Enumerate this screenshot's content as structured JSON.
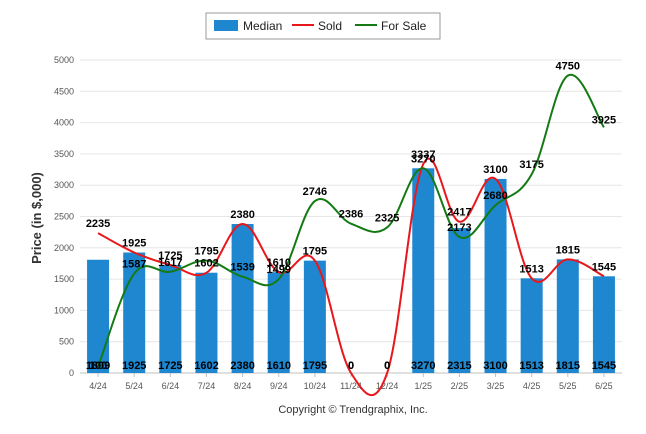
{
  "chart_data": {
    "type": "bar",
    "ylabel": "Price (in $,000)",
    "ylim": [
      0,
      5000
    ],
    "yticks": [
      0,
      500,
      1000,
      1500,
      2000,
      2500,
      3000,
      3500,
      4000,
      4500,
      5000
    ],
    "categories": [
      "4/24",
      "5/24",
      "6/24",
      "7/24",
      "8/24",
      "9/24",
      "10/24",
      "11/24",
      "12/24",
      "1/25",
      "2/25",
      "3/25",
      "4/25",
      "5/25",
      "6/25"
    ],
    "series": [
      {
        "name": "Median",
        "type": "bar",
        "color": "#1F87D0",
        "values": [
          1809,
          1925,
          1725,
          1602,
          2380,
          1610,
          1795,
          0,
          0,
          3270,
          2315,
          3100,
          1513,
          1815,
          1545
        ],
        "labels": [
          "1809",
          "1925",
          "1725",
          "1602",
          "2380",
          "1610",
          "1795",
          "0",
          "0",
          "3270",
          "2315",
          "3100",
          "1513",
          "1815",
          "1545"
        ]
      },
      {
        "name": "Sold",
        "type": "line",
        "color": "#E8171C",
        "values": [
          2235,
          1925,
          1725,
          1602,
          2380,
          1610,
          1795,
          0,
          0,
          3337,
          2417,
          3100,
          1513,
          1815,
          1545
        ],
        "labels": [
          "2235",
          "1925",
          "1725",
          "1602",
          "2380",
          "1610",
          "1795",
          "0",
          "0",
          "3337",
          "2417",
          "3100",
          "1513",
          "1815",
          "1545"
        ]
      },
      {
        "name": "For Sale",
        "type": "line",
        "color": "#147A14",
        "values": [
          100,
          1587,
          1617,
          1795,
          1539,
          1499,
          2746,
          2386,
          2325,
          3270,
          2173,
          2680,
          3175,
          4750,
          3925
        ],
        "labels": [
          "100",
          "1587",
          "1617",
          "1795",
          "1539",
          "1499",
          "2746",
          "2386",
          "2325",
          "3270",
          "2173",
          "2680",
          "3175",
          "4750",
          "3925"
        ]
      }
    ],
    "legend_position": "top-center",
    "grid": true,
    "colors": {
      "gridline": "#E6E6E6",
      "axis": "#C0C0C0"
    }
  },
  "footer": {
    "copyright": "Copyright © Trendgraphix, Inc."
  }
}
